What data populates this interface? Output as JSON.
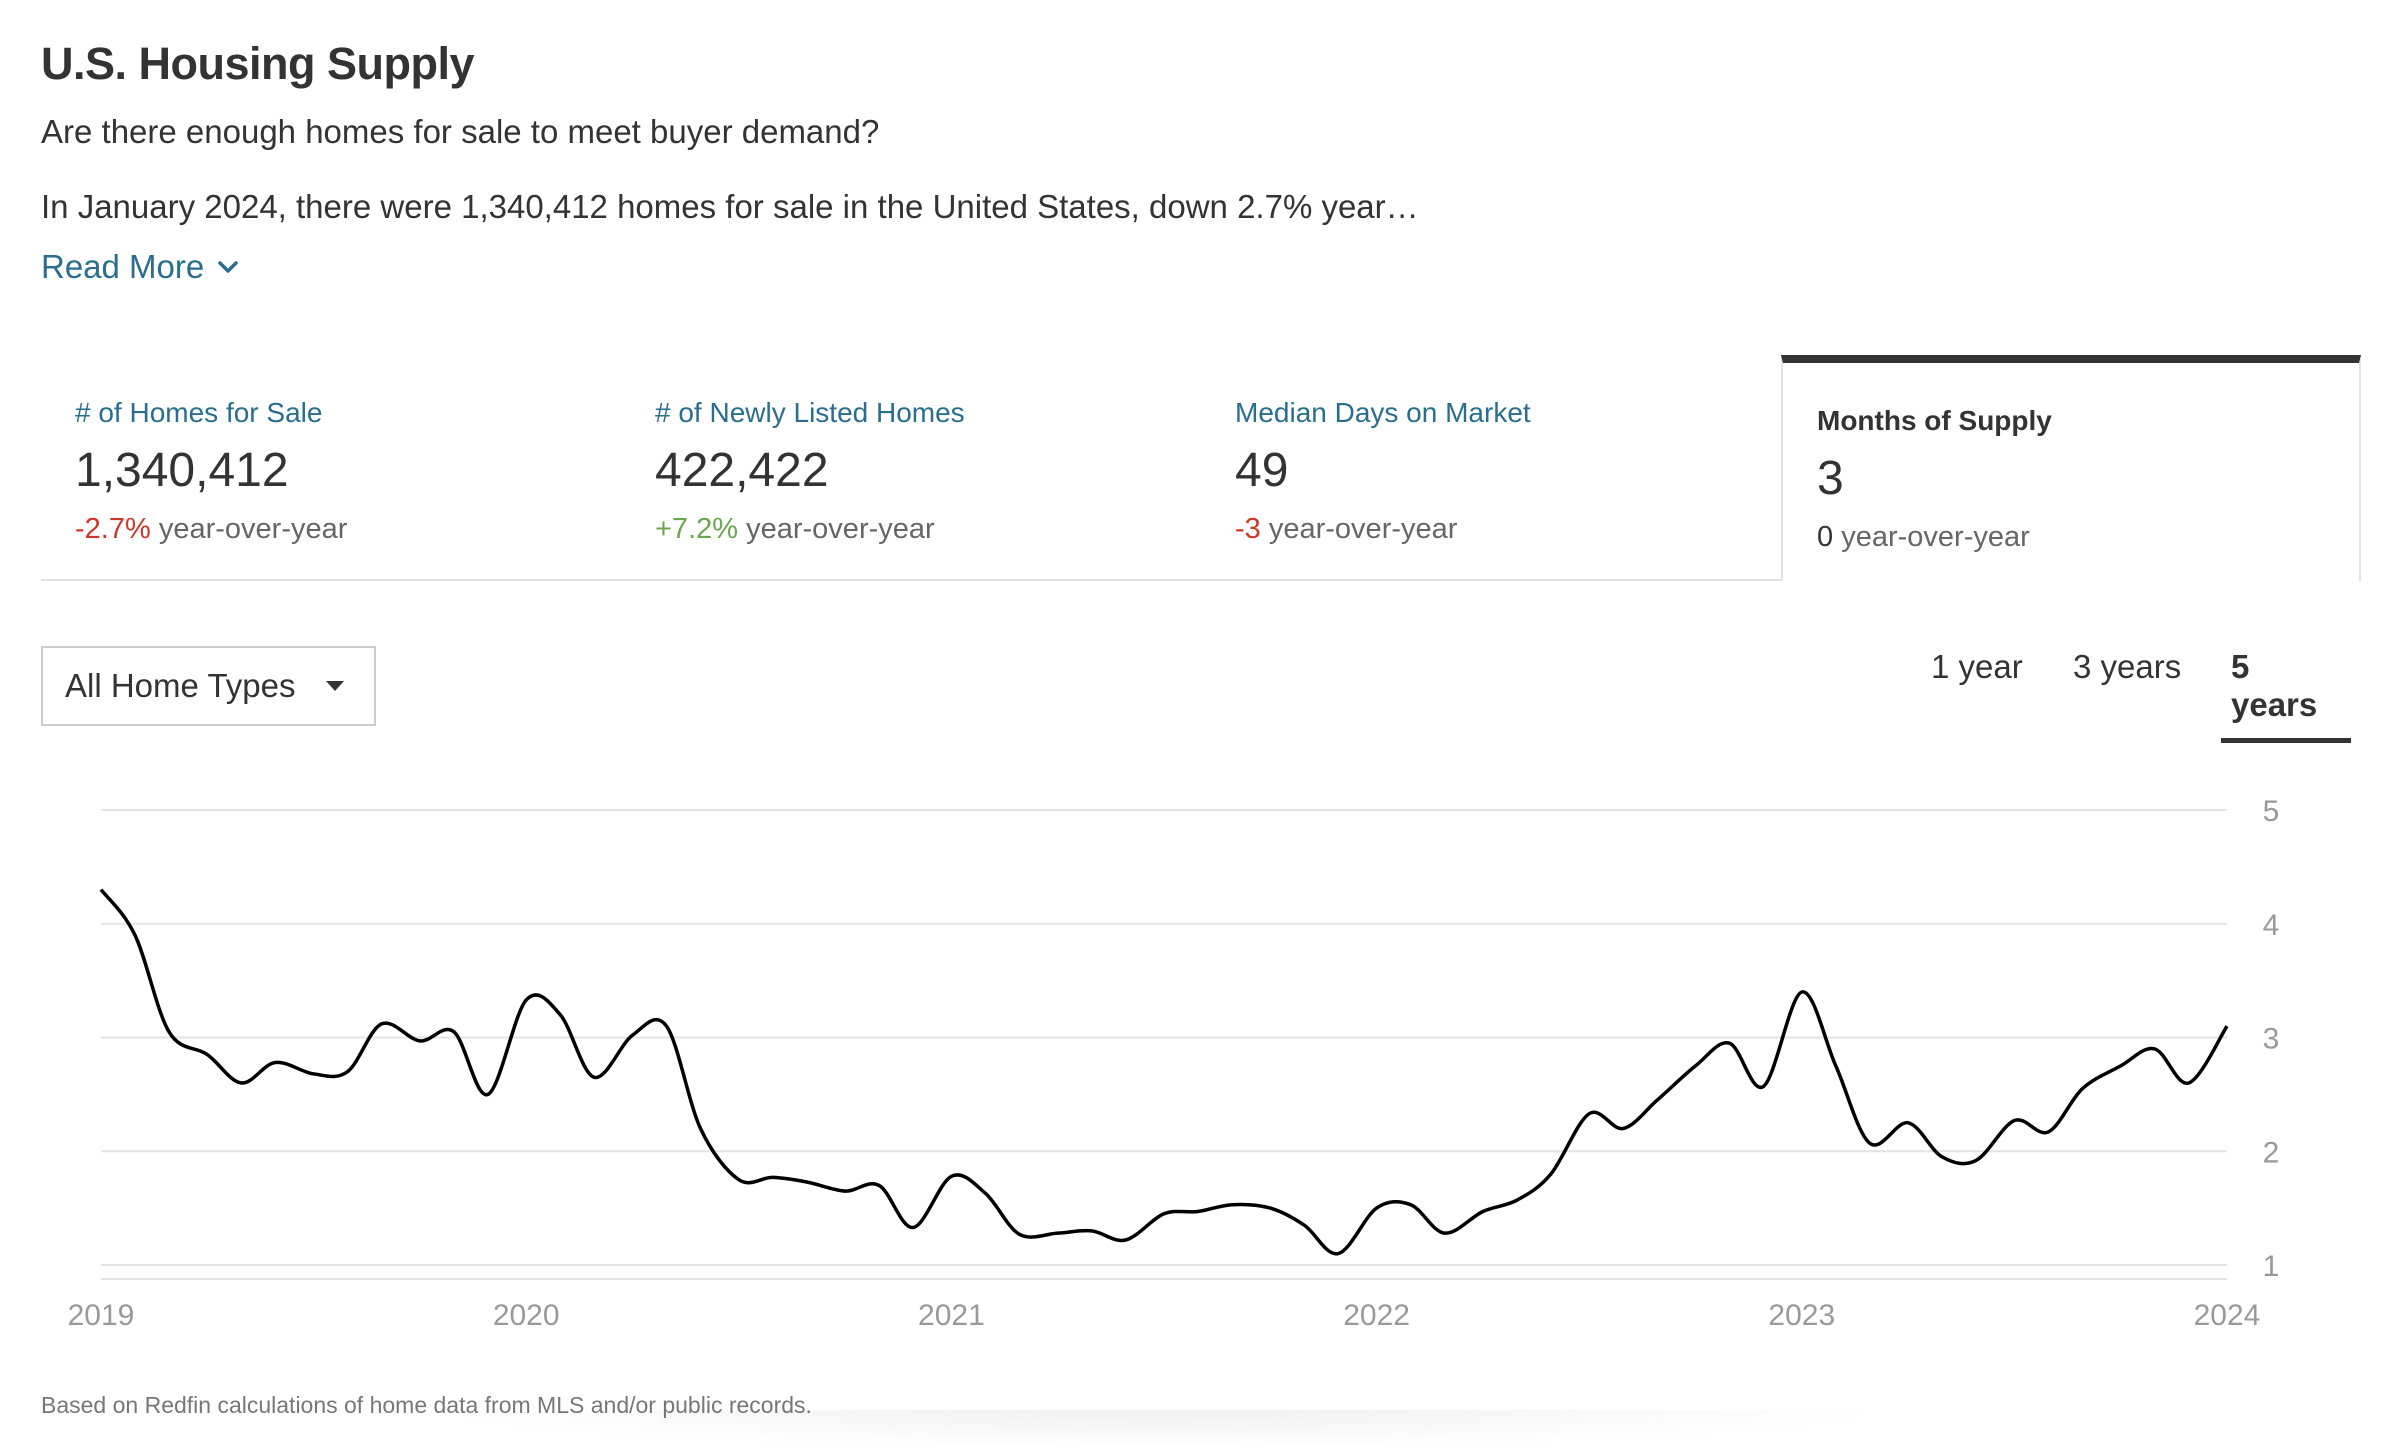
{
  "header": {
    "title": "U.S. Housing Supply",
    "subtitle": "Are there enough homes for sale to meet buyer demand?",
    "summary": "In January 2024, there were 1,340,412 homes for sale in the United States, down 2.7% year…",
    "read_more": "Read More"
  },
  "tabs": [
    {
      "label": "# of Homes for Sale",
      "value": "1,340,412",
      "change": "-2.7%",
      "change_suffix": "year-over-year",
      "active": false
    },
    {
      "label": "# of Newly Listed Homes",
      "value": "422,422",
      "change": "+7.2%",
      "change_suffix": "year-over-year",
      "active": false
    },
    {
      "label": "Median Days on Market",
      "value": "49",
      "change": "-3",
      "change_suffix": "year-over-year",
      "active": false
    },
    {
      "label": "Months of Supply",
      "value": "3",
      "change": "0",
      "change_suffix": "year-over-year",
      "active": true
    }
  ],
  "filters": {
    "home_type": "All Home Types",
    "ranges": [
      "1 year",
      "3 years",
      "5 years"
    ],
    "active_range": "5 years"
  },
  "colors": {
    "link": "#2a6e8f",
    "negative": "#d0352b",
    "positive": "#6aa84f",
    "line": "#000000",
    "grid": "#e3e3e3"
  },
  "chart_data": {
    "type": "line",
    "title": "",
    "xlabel": "",
    "ylabel": "",
    "ylim": [
      1,
      5
    ],
    "yticks": [
      1,
      2,
      3,
      4,
      5
    ],
    "xlim": [
      2019,
      2024
    ],
    "xticks": [
      "2019",
      "2020",
      "2021",
      "2022",
      "2023",
      "2024"
    ],
    "axis_position": "right",
    "grid": true,
    "series": [
      {
        "values": [
          [
            2019.0,
            4.3
          ],
          [
            2019.08,
            3.9
          ],
          [
            2019.16,
            3.05
          ],
          [
            2019.25,
            2.85
          ],
          [
            2019.33,
            2.6
          ],
          [
            2019.41,
            2.78
          ],
          [
            2019.5,
            2.68
          ],
          [
            2019.58,
            2.7
          ],
          [
            2019.66,
            3.12
          ],
          [
            2019.75,
            2.97
          ],
          [
            2019.83,
            3.05
          ],
          [
            2019.91,
            2.5
          ],
          [
            2020.0,
            3.33
          ],
          [
            2020.08,
            3.2
          ],
          [
            2020.16,
            2.65
          ],
          [
            2020.25,
            3.02
          ],
          [
            2020.33,
            3.1
          ],
          [
            2020.41,
            2.2
          ],
          [
            2020.5,
            1.75
          ],
          [
            2020.58,
            1.77
          ],
          [
            2020.66,
            1.73
          ],
          [
            2020.75,
            1.65
          ],
          [
            2020.83,
            1.7
          ],
          [
            2020.91,
            1.33
          ],
          [
            2021.0,
            1.78
          ],
          [
            2021.08,
            1.63
          ],
          [
            2021.16,
            1.27
          ],
          [
            2021.25,
            1.28
          ],
          [
            2021.33,
            1.3
          ],
          [
            2021.41,
            1.22
          ],
          [
            2021.5,
            1.45
          ],
          [
            2021.58,
            1.47
          ],
          [
            2021.66,
            1.53
          ],
          [
            2021.75,
            1.5
          ],
          [
            2021.83,
            1.35
          ],
          [
            2021.91,
            1.1
          ],
          [
            2022.0,
            1.5
          ],
          [
            2022.08,
            1.53
          ],
          [
            2022.16,
            1.28
          ],
          [
            2022.25,
            1.47
          ],
          [
            2022.33,
            1.57
          ],
          [
            2022.41,
            1.8
          ],
          [
            2022.5,
            2.33
          ],
          [
            2022.58,
            2.2
          ],
          [
            2022.66,
            2.45
          ],
          [
            2022.75,
            2.75
          ],
          [
            2022.83,
            2.95
          ],
          [
            2022.91,
            2.57
          ],
          [
            2023.0,
            3.4
          ],
          [
            2023.08,
            2.75
          ],
          [
            2023.16,
            2.07
          ],
          [
            2023.25,
            2.25
          ],
          [
            2023.33,
            1.95
          ],
          [
            2023.41,
            1.92
          ],
          [
            2023.5,
            2.27
          ],
          [
            2023.58,
            2.17
          ],
          [
            2023.66,
            2.55
          ],
          [
            2023.75,
            2.75
          ],
          [
            2023.83,
            2.9
          ],
          [
            2023.91,
            2.6
          ],
          [
            2024.0,
            3.1
          ]
        ]
      }
    ]
  },
  "footer": {
    "note": "Based on Redfin calculations of home data from MLS and/or public records."
  }
}
